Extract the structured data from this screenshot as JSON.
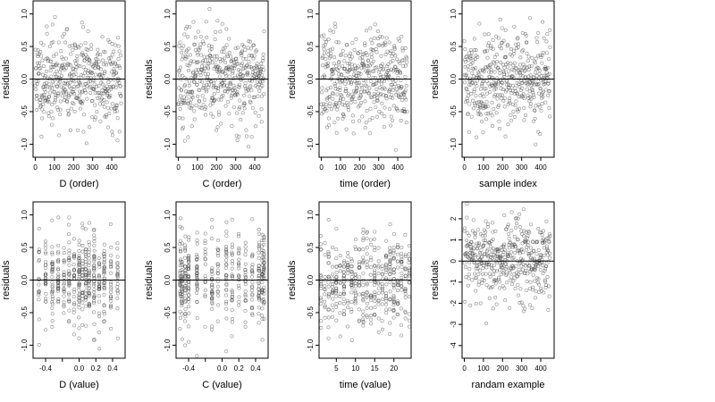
{
  "chart_data": [
    {
      "type": "scatter",
      "xlabel": "D (order)",
      "ylabel": "residuals",
      "xlim": [
        -12,
        470
      ],
      "ylim": [
        -1.2,
        1.2
      ],
      "xticks": [
        0,
        100,
        200,
        300,
        400
      ],
      "yticks": [
        -1.0,
        -0.5,
        0.0,
        0.5,
        1.0
      ],
      "xtick_labels": [
        "0",
        "100",
        "200",
        "300",
        "400"
      ],
      "ytick_labels": [
        "-1.0",
        "-0.5",
        "0.0",
        "0.5",
        "1.0"
      ],
      "hline": 0,
      "n_points": 450,
      "x_pattern": "index",
      "y_spread": 0.35,
      "seed": 11
    },
    {
      "type": "scatter",
      "xlabel": "C (order)",
      "ylabel": "residuals",
      "xlim": [
        -12,
        470
      ],
      "ylim": [
        -1.2,
        1.2
      ],
      "xticks": [
        0,
        100,
        200,
        300,
        400
      ],
      "yticks": [
        -1.0,
        -0.5,
        0.0,
        0.5,
        1.0
      ],
      "xtick_labels": [
        "0",
        "100",
        "200",
        "300",
        "400"
      ],
      "ytick_labels": [
        "-1.0",
        "-0.5",
        "0.0",
        "0.5",
        "1.0"
      ],
      "hline": 0,
      "n_points": 450,
      "x_pattern": "index",
      "y_spread": 0.35,
      "seed": 23
    },
    {
      "type": "scatter",
      "xlabel": "time (order)",
      "ylabel": "residuals",
      "xlim": [
        -12,
        470
      ],
      "ylim": [
        -1.2,
        1.2
      ],
      "xticks": [
        0,
        100,
        200,
        300,
        400
      ],
      "yticks": [
        -1.0,
        -0.5,
        0.0,
        0.5,
        1.0
      ],
      "xtick_labels": [
        "0",
        "100",
        "200",
        "300",
        "400"
      ],
      "ytick_labels": [
        "-1.0",
        "-0.5",
        "0.0",
        "0.5",
        "1.0"
      ],
      "hline": 0,
      "n_points": 450,
      "x_pattern": "index",
      "y_spread": 0.35,
      "seed": 37
    },
    {
      "type": "scatter",
      "xlabel": "sample index",
      "ylabel": "residuals",
      "xlim": [
        -12,
        470
      ],
      "ylim": [
        -1.2,
        1.2
      ],
      "xticks": [
        0,
        100,
        200,
        300,
        400
      ],
      "yticks": [
        -1.0,
        -0.5,
        0.0,
        0.5,
        1.0
      ],
      "xtick_labels": [
        "0",
        "100",
        "200",
        "300",
        "400"
      ],
      "ytick_labels": [
        "-1.0",
        "-0.5",
        "0.0",
        "0.5",
        "1.0"
      ],
      "hline": 0,
      "n_points": 450,
      "x_pattern": "index",
      "y_spread": 0.35,
      "seed": 41
    },
    {
      "type": "scatter",
      "xlabel": "D (value)",
      "ylabel": "residuals",
      "xlim": [
        -0.55,
        0.55
      ],
      "ylim": [
        -1.2,
        1.2
      ],
      "xticks": [
        -0.4,
        -0.2,
        0.0,
        0.2,
        0.4
      ],
      "yticks": [
        -1.0,
        -0.5,
        0.0,
        0.5,
        1.0
      ],
      "xtick_labels": [
        "-0.4",
        "",
        "0.0",
        "0.2",
        "0.4"
      ],
      "ytick_labels": [
        "-1.0",
        "-0.5",
        "0.0",
        "0.5",
        "1.0"
      ],
      "hline": 0,
      "n_points": 450,
      "x_pattern": "levels",
      "x_levels": [
        -0.48,
        -0.4,
        -0.32,
        -0.25,
        -0.18,
        -0.12,
        -0.06,
        0.0,
        0.04,
        0.08,
        0.12,
        0.18,
        0.24,
        0.3,
        0.38,
        0.46
      ],
      "y_spread": 0.35,
      "seed": 53
    },
    {
      "type": "scatter",
      "xlabel": "C (value)",
      "ylabel": "residuals",
      "xlim": [
        -0.55,
        0.55
      ],
      "ylim": [
        -1.2,
        1.2
      ],
      "xticks": [
        -0.4,
        -0.2,
        0.0,
        0.2,
        0.4
      ],
      "yticks": [
        -1.0,
        -0.5,
        0.0,
        0.5,
        1.0
      ],
      "xtick_labels": [
        "-0.4",
        "",
        "0.0",
        "0.2",
        "0.4"
      ],
      "ytick_labels": [
        "-1.0",
        "-0.5",
        "0.0",
        "0.5",
        "1.0"
      ],
      "hline": 0,
      "n_points": 450,
      "x_pattern": "levels",
      "x_levels": [
        -0.5,
        -0.48,
        -0.44,
        -0.4,
        -0.3,
        -0.2,
        -0.12,
        -0.05,
        0.05,
        0.12,
        0.2,
        0.28,
        0.36,
        0.44,
        0.48,
        0.5
      ],
      "y_spread": 0.35,
      "seed": 67
    },
    {
      "type": "scatter",
      "xlabel": "time (value)",
      "ylabel": "residuals",
      "xlim": [
        0.5,
        24.5
      ],
      "ylim": [
        -1.2,
        1.2
      ],
      "xticks": [
        5,
        10,
        15,
        20
      ],
      "yticks": [
        -1.0,
        -0.5,
        0.0,
        0.5,
        1.0
      ],
      "xtick_labels": [
        "5",
        "10",
        "15",
        "20"
      ],
      "ytick_labels": [
        "-1.0",
        "-0.5",
        "0.0",
        "0.5",
        "1.0"
      ],
      "hline": 0,
      "n_points": 450,
      "x_pattern": "levels",
      "x_levels": [
        1,
        2,
        3,
        4,
        5,
        6,
        7,
        8,
        9,
        10,
        11,
        12,
        13,
        14,
        15,
        16,
        17,
        18,
        19,
        20,
        21,
        22,
        23,
        24
      ],
      "y_spread": 0.35,
      "seed": 79
    },
    {
      "type": "scatter",
      "xlabel": "randam example",
      "ylabel": "residuals",
      "xlim": [
        -12,
        470
      ],
      "ylim": [
        -4.6,
        2.8
      ],
      "xticks": [
        0,
        100,
        200,
        300,
        400
      ],
      "yticks": [
        -4,
        -3,
        -2,
        -1,
        0,
        1,
        2
      ],
      "xtick_labels": [
        "0",
        "100",
        "200",
        "300",
        "400"
      ],
      "ytick_labels": [
        "-4",
        "-3",
        "-2",
        "-1",
        "0",
        "1",
        "2"
      ],
      "hline": 0,
      "n_points": 450,
      "x_pattern": "index",
      "y_spread": 1.0,
      "seed": 97
    }
  ]
}
